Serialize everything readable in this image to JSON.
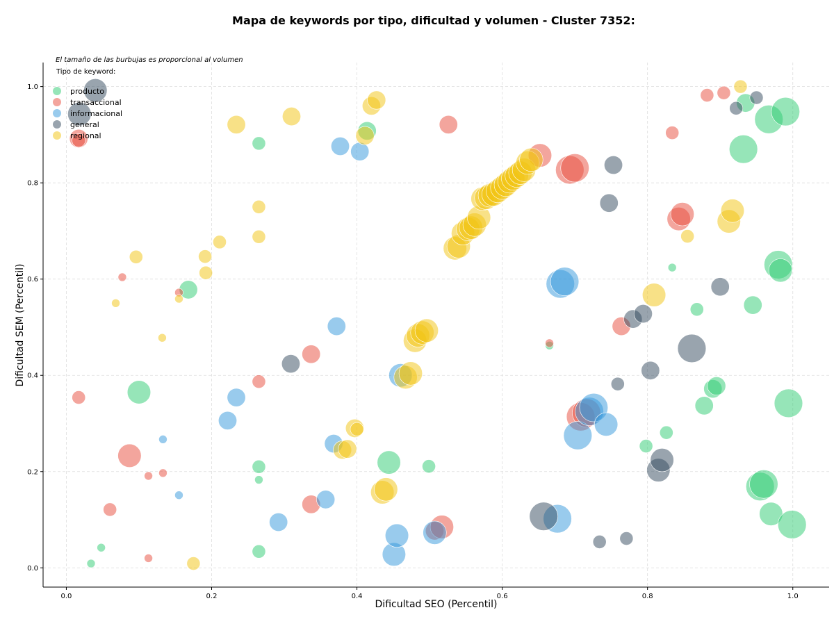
{
  "chart_data": {
    "type": "scatter",
    "title": "Mapa de keywords por tipo, dificultad y volumen - Cluster 7352:",
    "xlabel": "Dificultad SEO (Percentil)",
    "ylabel": "Dificultad SEM (Percentil)",
    "note": "El tamaño de las burbujas es proporcional al volumen",
    "legend_title": "Tipo de keyword:",
    "legend_position": "top-left",
    "xlim": [
      -0.032,
      1.05
    ],
    "ylim": [
      -0.04,
      1.05
    ],
    "xticks": [
      "0.0",
      "0.2",
      "0.4",
      "0.6",
      "0.8",
      "1.0"
    ],
    "xtick_values": [
      0.0,
      0.2,
      0.4,
      0.6,
      0.8,
      1.0
    ],
    "yticks": [
      "0.0",
      "0.2",
      "0.4",
      "0.6",
      "0.8",
      "1.0"
    ],
    "ytick_values": [
      0.0,
      0.2,
      0.4,
      0.6,
      0.8,
      1.0
    ],
    "grid": true,
    "series": [
      {
        "name": "producto",
        "color": "#2ecc71",
        "points": [
          [
            0.034,
            0.009,
            1
          ],
          [
            0.048,
            0.042,
            1
          ],
          [
            0.1,
            0.365,
            4
          ],
          [
            0.168,
            0.578,
            3
          ],
          [
            0.265,
            0.882,
            2
          ],
          [
            0.265,
            0.21,
            2
          ],
          [
            0.265,
            0.183,
            1
          ],
          [
            0.265,
            0.034,
            2
          ],
          [
            0.414,
            0.908,
            3
          ],
          [
            0.444,
            0.219,
            4
          ],
          [
            0.499,
            0.211,
            2
          ],
          [
            0.665,
            0.462,
            1
          ],
          [
            0.798,
            0.253,
            2
          ],
          [
            0.826,
            0.281,
            2
          ],
          [
            0.834,
            0.624,
            1
          ],
          [
            0.868,
            0.537,
            2
          ],
          [
            0.878,
            0.337,
            3
          ],
          [
            0.89,
            0.372,
            3
          ],
          [
            0.895,
            0.378,
            3
          ],
          [
            0.932,
            0.87,
            5
          ],
          [
            0.935,
            0.966,
            3
          ],
          [
            0.945,
            0.546,
            3
          ],
          [
            0.955,
            0.169,
            5
          ],
          [
            0.96,
            0.174,
            5
          ],
          [
            0.967,
            0.932,
            5
          ],
          [
            0.97,
            0.112,
            4
          ],
          [
            0.98,
            0.63,
            5
          ],
          [
            0.983,
            0.618,
            4
          ],
          [
            0.99,
            0.948,
            5
          ],
          [
            0.994,
            0.342,
            5
          ],
          [
            0.999,
            0.09,
            5
          ]
        ]
      },
      {
        "name": "transaccional",
        "color": "#e74c3c",
        "points": [
          [
            0.017,
            0.354,
            2
          ],
          [
            0.017,
            0.892,
            3
          ],
          [
            0.017,
            0.888,
            2
          ],
          [
            0.06,
            0.121,
            2
          ],
          [
            0.077,
            0.604,
            1
          ],
          [
            0.087,
            0.233,
            4
          ],
          [
            0.113,
            0.02,
            1
          ],
          [
            0.113,
            0.191,
            1
          ],
          [
            0.133,
            0.197,
            1
          ],
          [
            0.155,
            0.572,
            1
          ],
          [
            0.265,
            0.387,
            2
          ],
          [
            0.337,
            0.444,
            3
          ],
          [
            0.337,
            0.132,
            3
          ],
          [
            0.507,
            0.077,
            3
          ],
          [
            0.517,
            0.085,
            4
          ],
          [
            0.526,
            0.921,
            3
          ],
          [
            0.652,
            0.857,
            4
          ],
          [
            0.665,
            0.467,
            1
          ],
          [
            0.693,
            0.827,
            5
          ],
          [
            0.7,
            0.831,
            5
          ],
          [
            0.708,
            0.314,
            5
          ],
          [
            0.716,
            0.322,
            5
          ],
          [
            0.764,
            0.502,
            3
          ],
          [
            0.843,
            0.725,
            4
          ],
          [
            0.848,
            0.735,
            4
          ],
          [
            0.834,
            0.904,
            2
          ],
          [
            0.882,
            0.982,
            2
          ],
          [
            0.905,
            0.987,
            2
          ]
        ]
      },
      {
        "name": "informacional",
        "color": "#3498db",
        "points": [
          [
            0.133,
            0.267,
            1
          ],
          [
            0.155,
            0.151,
            1
          ],
          [
            0.222,
            0.306,
            3
          ],
          [
            0.234,
            0.354,
            3
          ],
          [
            0.292,
            0.095,
            3
          ],
          [
            0.357,
            0.142,
            3
          ],
          [
            0.368,
            0.258,
            3
          ],
          [
            0.372,
            0.502,
            3
          ],
          [
            0.377,
            0.876,
            3
          ],
          [
            0.404,
            0.865,
            3
          ],
          [
            0.451,
            0.028,
            4
          ],
          [
            0.455,
            0.067,
            4
          ],
          [
            0.46,
            0.4,
            4
          ],
          [
            0.507,
            0.073,
            4
          ],
          [
            0.676,
            0.102,
            5
          ],
          [
            0.68,
            0.59,
            5
          ],
          [
            0.686,
            0.595,
            5
          ],
          [
            0.704,
            0.275,
            5
          ],
          [
            0.72,
            0.325,
            5
          ],
          [
            0.726,
            0.333,
            5
          ],
          [
            0.743,
            0.298,
            4
          ]
        ]
      },
      {
        "name": "general",
        "color": "#34495e",
        "points": [
          [
            0.018,
            0.943,
            4
          ],
          [
            0.04,
            0.992,
            4
          ],
          [
            0.309,
            0.424,
            3
          ],
          [
            0.657,
            0.107,
            5
          ],
          [
            0.734,
            0.054,
            2
          ],
          [
            0.747,
            0.758,
            3
          ],
          [
            0.753,
            0.837,
            3
          ],
          [
            0.759,
            0.382,
            2
          ],
          [
            0.771,
            0.061,
            2
          ],
          [
            0.78,
            0.517,
            3
          ],
          [
            0.794,
            0.528,
            3
          ],
          [
            0.804,
            0.41,
            3
          ],
          [
            0.815,
            0.203,
            4
          ],
          [
            0.82,
            0.224,
            4
          ],
          [
            0.861,
            0.456,
            5
          ],
          [
            0.9,
            0.584,
            3
          ],
          [
            0.922,
            0.955,
            2
          ],
          [
            0.95,
            0.977,
            2
          ]
        ]
      },
      {
        "name": "regional",
        "color": "#f1c40f",
        "points": [
          [
            0.068,
            0.55,
            1
          ],
          [
            0.096,
            0.646,
            2
          ],
          [
            0.132,
            0.478,
            1
          ],
          [
            0.155,
            0.559,
            1
          ],
          [
            0.175,
            0.009,
            2
          ],
          [
            0.191,
            0.647,
            2
          ],
          [
            0.192,
            0.613,
            2
          ],
          [
            0.211,
            0.677,
            2
          ],
          [
            0.234,
            0.921,
            3
          ],
          [
            0.265,
            0.75,
            2
          ],
          [
            0.265,
            0.688,
            2
          ],
          [
            0.31,
            0.938,
            3
          ],
          [
            0.38,
            0.245,
            3
          ],
          [
            0.387,
            0.247,
            3
          ],
          [
            0.397,
            0.29,
            3
          ],
          [
            0.4,
            0.288,
            2
          ],
          [
            0.411,
            0.898,
            3
          ],
          [
            0.42,
            0.96,
            3
          ],
          [
            0.427,
            0.972,
            3
          ],
          [
            0.435,
            0.157,
            4
          ],
          [
            0.44,
            0.163,
            4
          ],
          [
            0.467,
            0.396,
            4
          ],
          [
            0.474,
            0.404,
            4
          ],
          [
            0.48,
            0.472,
            4
          ],
          [
            0.484,
            0.483,
            4
          ],
          [
            0.49,
            0.489,
            4
          ],
          [
            0.496,
            0.493,
            4
          ],
          [
            0.535,
            0.664,
            4
          ],
          [
            0.54,
            0.668,
            4
          ],
          [
            0.546,
            0.695,
            4
          ],
          [
            0.553,
            0.704,
            4
          ],
          [
            0.557,
            0.707,
            4
          ],
          [
            0.562,
            0.713,
            4
          ],
          [
            0.568,
            0.728,
            4
          ],
          [
            0.573,
            0.767,
            4
          ],
          [
            0.578,
            0.769,
            4
          ],
          [
            0.583,
            0.774,
            4
          ],
          [
            0.588,
            0.776,
            4
          ],
          [
            0.594,
            0.783,
            4
          ],
          [
            0.6,
            0.79,
            4
          ],
          [
            0.605,
            0.796,
            4
          ],
          [
            0.61,
            0.803,
            4
          ],
          [
            0.615,
            0.809,
            4
          ],
          [
            0.62,
            0.815,
            4
          ],
          [
            0.625,
            0.821,
            4
          ],
          [
            0.63,
            0.827,
            4
          ],
          [
            0.635,
            0.842,
            4
          ],
          [
            0.64,
            0.848,
            4
          ],
          [
            0.809,
            0.567,
            4
          ],
          [
            0.855,
            0.689,
            2
          ],
          [
            0.912,
            0.72,
            4
          ],
          [
            0.917,
            0.742,
            4
          ],
          [
            0.928,
            1.0,
            2
          ]
        ]
      }
    ]
  }
}
